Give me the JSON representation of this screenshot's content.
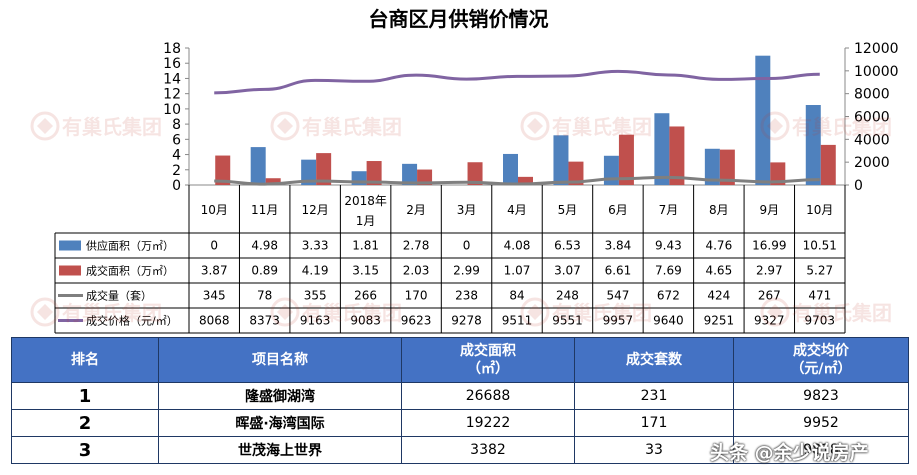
{
  "chart_data": {
    "type": "bar",
    "title": "台商区月供销价情况",
    "categories": [
      "10月",
      "11月",
      "12月",
      "2018年1月",
      "2月",
      "3月",
      "4月",
      "5月",
      "6月",
      "7月",
      "8月",
      "9月",
      "10月"
    ],
    "y_left": {
      "ylim": [
        0,
        18
      ],
      "ticks": [
        0,
        2,
        4,
        6,
        8,
        10,
        12,
        14,
        16,
        18
      ]
    },
    "y_right": {
      "ylim": [
        0,
        12000
      ],
      "ticks": [
        0,
        2000,
        4000,
        6000,
        8000,
        10000,
        12000
      ]
    },
    "series": [
      {
        "name": "供应面积（万㎡）",
        "type": "bar",
        "axis": "left",
        "color": "#4f81bd",
        "values": [
          0,
          4.98,
          3.33,
          1.81,
          2.78,
          0,
          4.08,
          6.53,
          3.84,
          9.43,
          4.76,
          16.99,
          10.51
        ]
      },
      {
        "name": "成交面积（万㎡）",
        "type": "bar",
        "axis": "left",
        "color": "#c0504d",
        "values": [
          3.87,
          0.89,
          4.19,
          3.15,
          2.03,
          2.99,
          1.07,
          3.07,
          6.61,
          7.69,
          4.65,
          2.97,
          5.27
        ]
      },
      {
        "name": "成交量（套）",
        "type": "line",
        "axis": "right",
        "color": "#7f7f7f",
        "values": [
          345,
          78,
          355,
          266,
          170,
          238,
          84,
          248,
          547,
          672,
          424,
          267,
          471
        ]
      },
      {
        "name": "成交价格（元/㎡）",
        "type": "line",
        "axis": "right",
        "color": "#8064a2",
        "values": [
          8068,
          8373,
          9163,
          9083,
          9623,
          9278,
          9511,
          9551,
          9957,
          9640,
          9251,
          9327,
          9703
        ]
      }
    ],
    "legend": "data-table"
  },
  "ranking": {
    "headers": [
      "排名",
      "项目名称",
      "成交面积\n（㎡）",
      "成交套数",
      "成交均价\n（元/㎡）"
    ],
    "rows": [
      {
        "rank": "1",
        "name": "隆盛御湖湾",
        "area": "26688",
        "units": "231",
        "price": "9823"
      },
      {
        "rank": "2",
        "name": "晖盛·海湾国际",
        "area": "19222",
        "units": "171",
        "price": "9952"
      },
      {
        "rank": "3",
        "name": "世茂海上世界",
        "area": "3382",
        "units": "33",
        "price": "9818"
      }
    ]
  },
  "watermark": {
    "logo_text": "有巢氏集团",
    "credit": "头条 @余少说房产"
  }
}
